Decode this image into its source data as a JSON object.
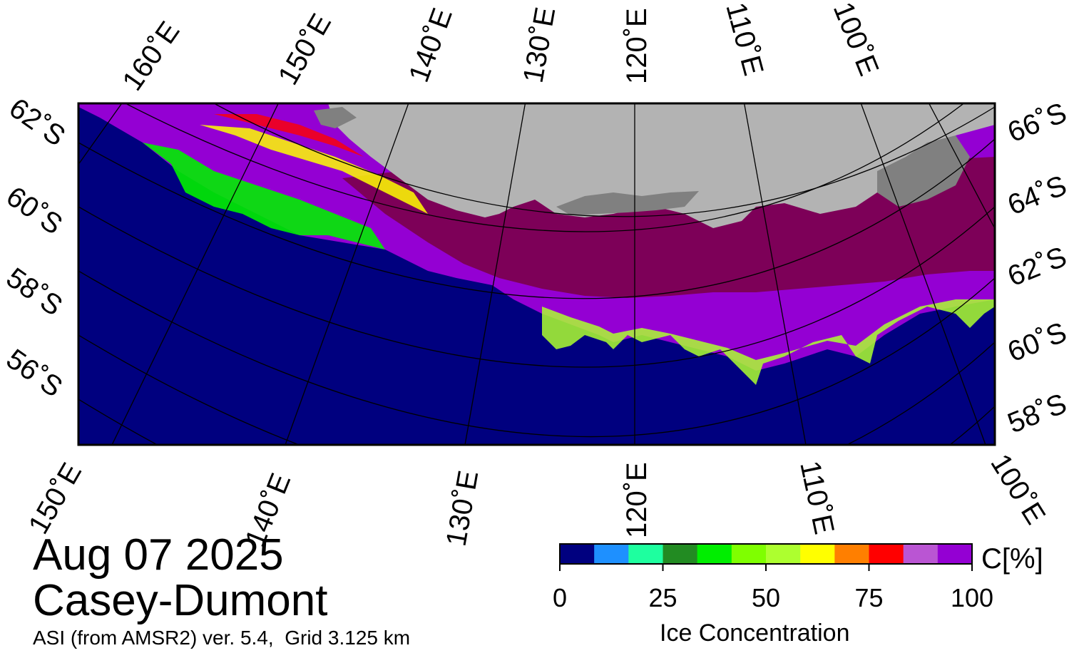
{
  "map": {
    "date": "Aug 07 2025",
    "region": "Casey-Dumont",
    "source": "ASI (from AMSR2) ver. 5.4,  Grid 3.125 km",
    "colors": {
      "ocean": "#00007f",
      "land": "#b3b3b3",
      "ice_shelf": "#808080",
      "ice_high": "#7d0058",
      "grid": "#000000"
    },
    "lon_labels_top": [
      "160˚E",
      "150˚E",
      "140˚E",
      "130˚E",
      "120˚E",
      "110˚E",
      "100˚E"
    ],
    "lon_labels_bottom": [
      "150˚E",
      "140˚E",
      "130˚E",
      "120˚E",
      "110˚E",
      "100˚E"
    ],
    "lat_labels_left": [
      "62˚S",
      "60˚S",
      "58˚S",
      "56˚S"
    ],
    "lat_labels_right": [
      "66˚S",
      "64˚S",
      "62˚S",
      "60˚S",
      "58˚S"
    ]
  },
  "colorbar": {
    "title": "Ice Concentration",
    "unit": "C[%]",
    "ticks": [
      "0",
      "25",
      "50",
      "75",
      "100"
    ],
    "colors": [
      "#00007f",
      "#1e90ff",
      "#1eff9f",
      "#228b22",
      "#00ee00",
      "#7fff00",
      "#adff2f",
      "#ffff00",
      "#ff7f00",
      "#ff0000",
      "#ba55d3",
      "#9400d3"
    ]
  }
}
